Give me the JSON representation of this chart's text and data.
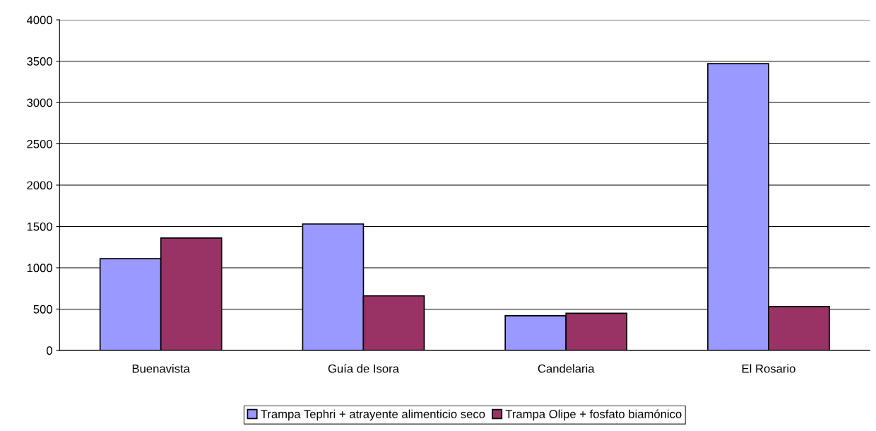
{
  "chart_data": {
    "type": "bar",
    "categories": [
      "Buenavista",
      "Guía de Isora",
      "Candelaria",
      "El Rosario"
    ],
    "series": [
      {
        "name": "Trampa Tephri + atrayente alimenticio seco",
        "color": "#9999ff",
        "values": [
          1110,
          1530,
          420,
          3470
        ]
      },
      {
        "name": "Trampa Olipe + fosfato biamónico",
        "color": "#993366",
        "values": [
          1360,
          660,
          450,
          530
        ]
      }
    ],
    "ylim": [
      0,
      4000
    ],
    "yticks": [
      0,
      500,
      1000,
      1500,
      2000,
      2500,
      3000,
      3500,
      4000
    ],
    "grid": "y",
    "legend": "bottom"
  }
}
